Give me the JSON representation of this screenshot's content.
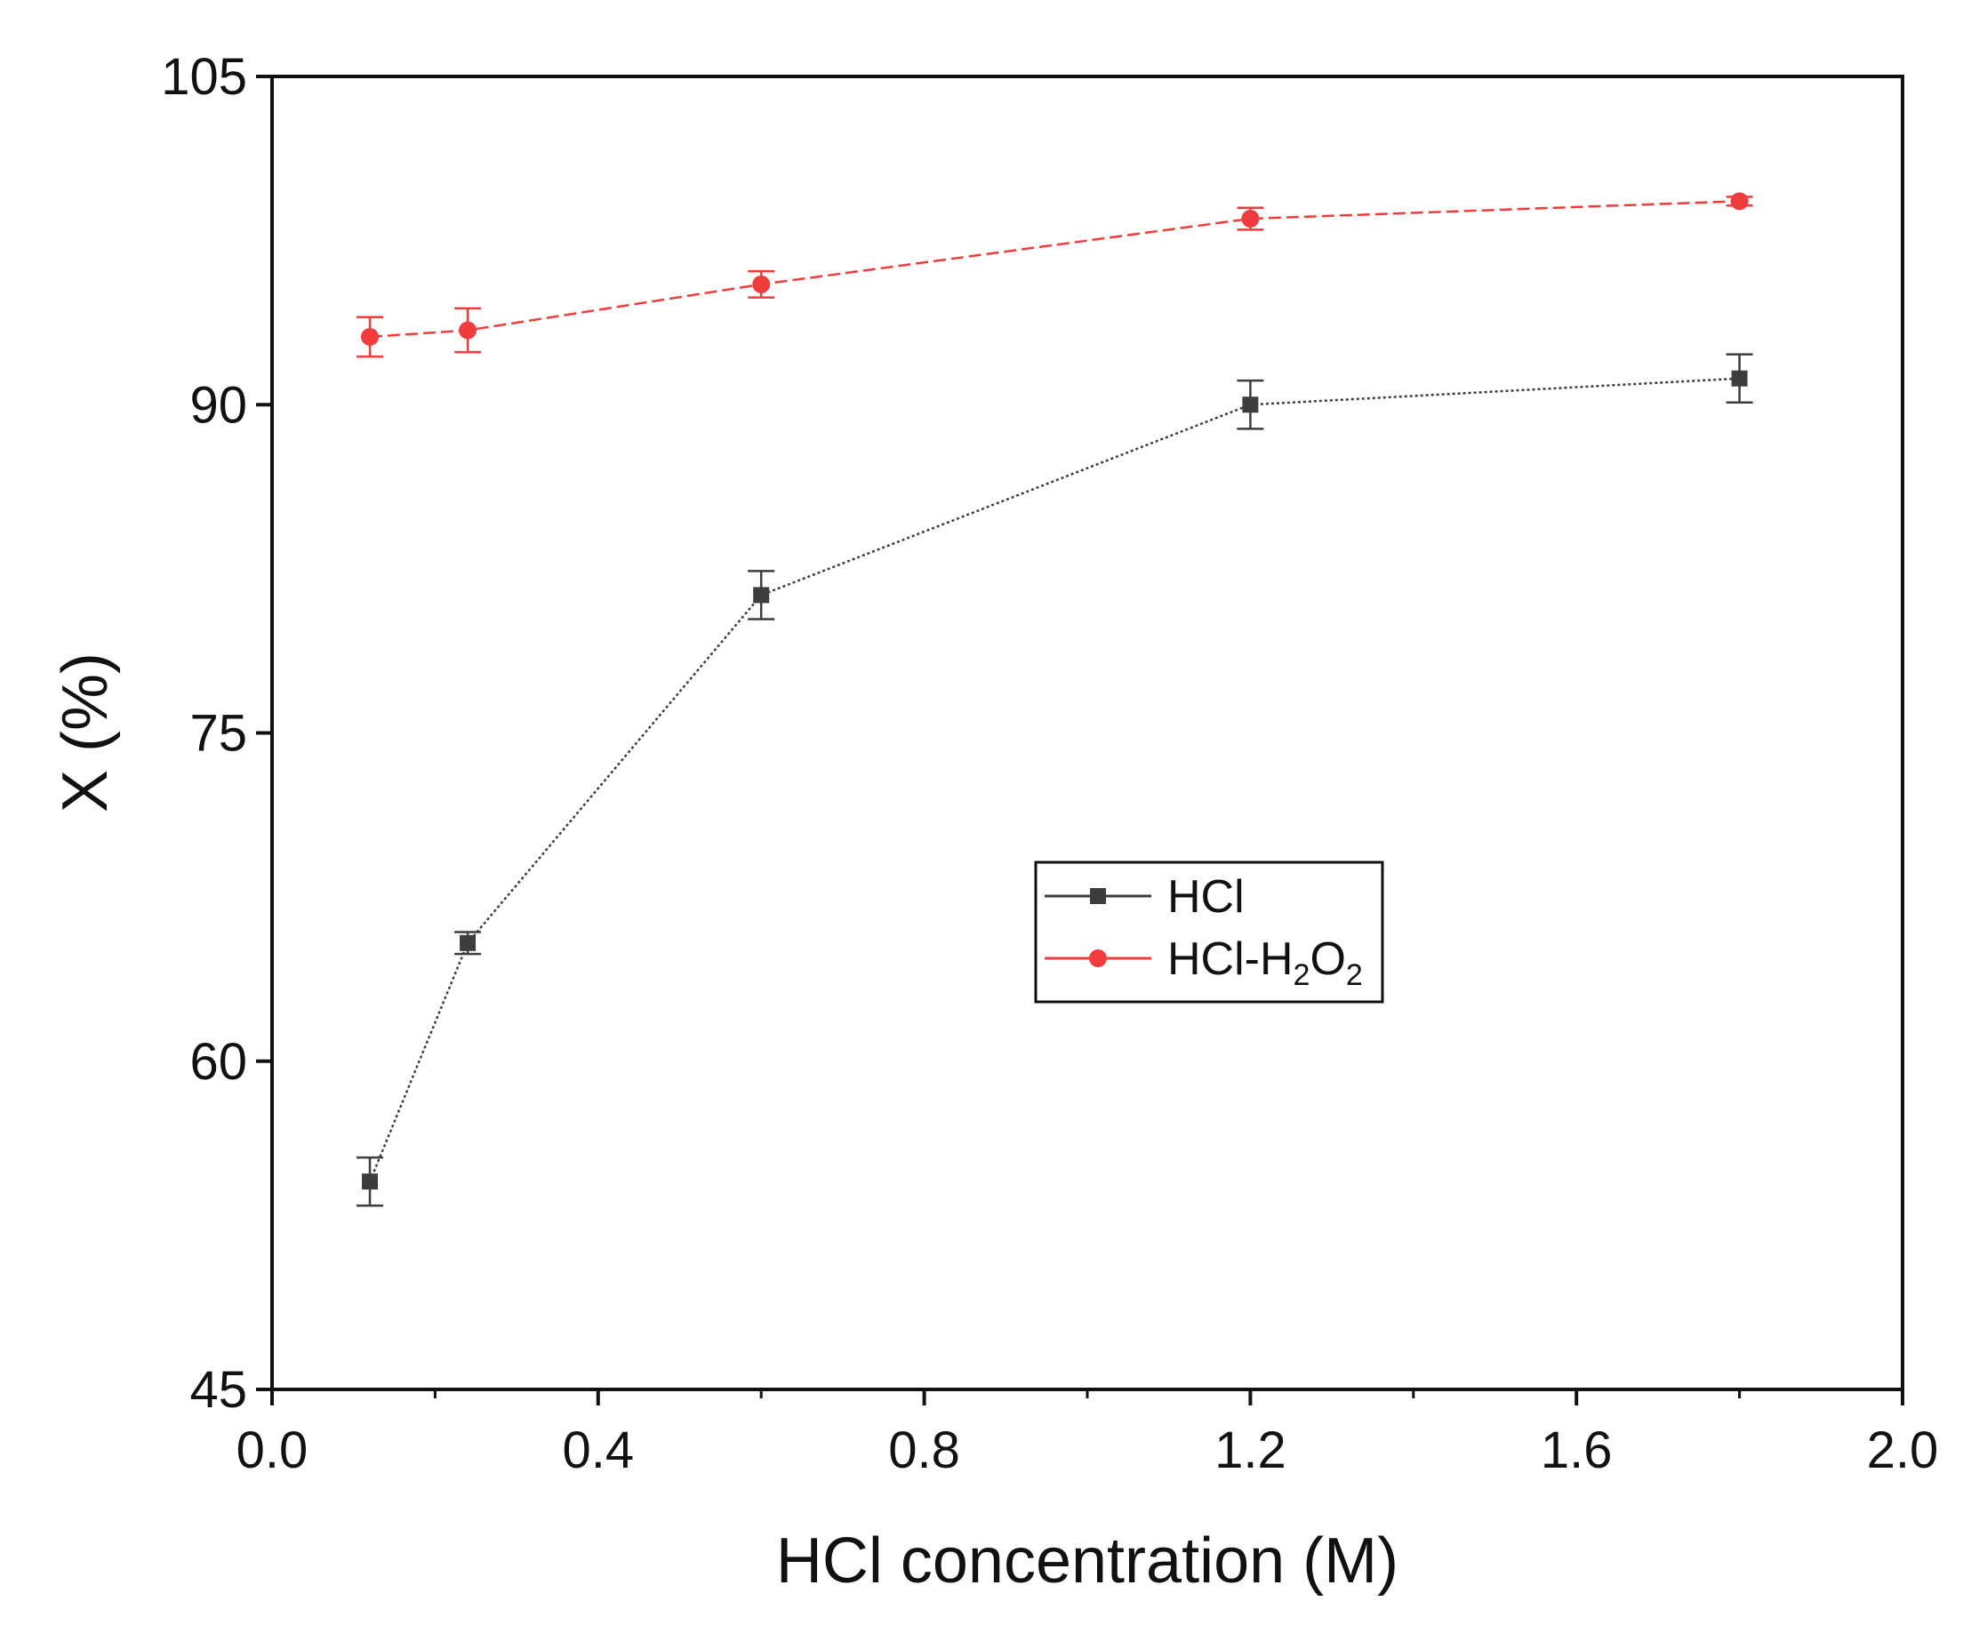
{
  "chart_data": {
    "type": "line",
    "title": "",
    "xlabel": "HCl concentration (M)",
    "ylabel": "X (%)",
    "xlim": [
      0.0,
      2.0
    ],
    "ylim": [
      45,
      105
    ],
    "x_ticks": [
      0.0,
      0.4,
      0.8,
      1.2,
      1.6,
      2.0
    ],
    "x_tick_labels": [
      "0.0",
      "0.4",
      "0.8",
      "1.2",
      "1.6",
      "2.0"
    ],
    "x_minor_ticks": [
      0.2,
      0.6,
      1.0,
      1.4,
      1.8
    ],
    "y_ticks": [
      45,
      60,
      75,
      90,
      105
    ],
    "y_tick_labels": [
      "45",
      "60",
      "75",
      "90",
      "105"
    ],
    "grid": false,
    "legend_position": "center-right",
    "series": [
      {
        "name": "HCl",
        "legend_label": "HCl",
        "color": "#3d3d3d",
        "marker": "square",
        "line_style": "dotted",
        "x": [
          0.12,
          0.24,
          0.6,
          1.2,
          1.8
        ],
        "y": [
          54.5,
          65.4,
          81.3,
          90.0,
          91.2
        ],
        "error": [
          1.1,
          0.5,
          1.1,
          1.1,
          1.1
        ]
      },
      {
        "name": "HCl-H2O2",
        "legend_label": "HCl-H",
        "legend_sub_1": "2",
        "legend_mid": "O",
        "legend_sub_2": "2",
        "color": "#f03c3c",
        "marker": "circle",
        "line_style": "dashed",
        "x": [
          0.12,
          0.24,
          0.6,
          1.2,
          1.8
        ],
        "y": [
          93.1,
          93.4,
          95.5,
          98.5,
          99.3
        ],
        "error": [
          0.9,
          1.0,
          0.6,
          0.5,
          0.2
        ]
      }
    ]
  }
}
